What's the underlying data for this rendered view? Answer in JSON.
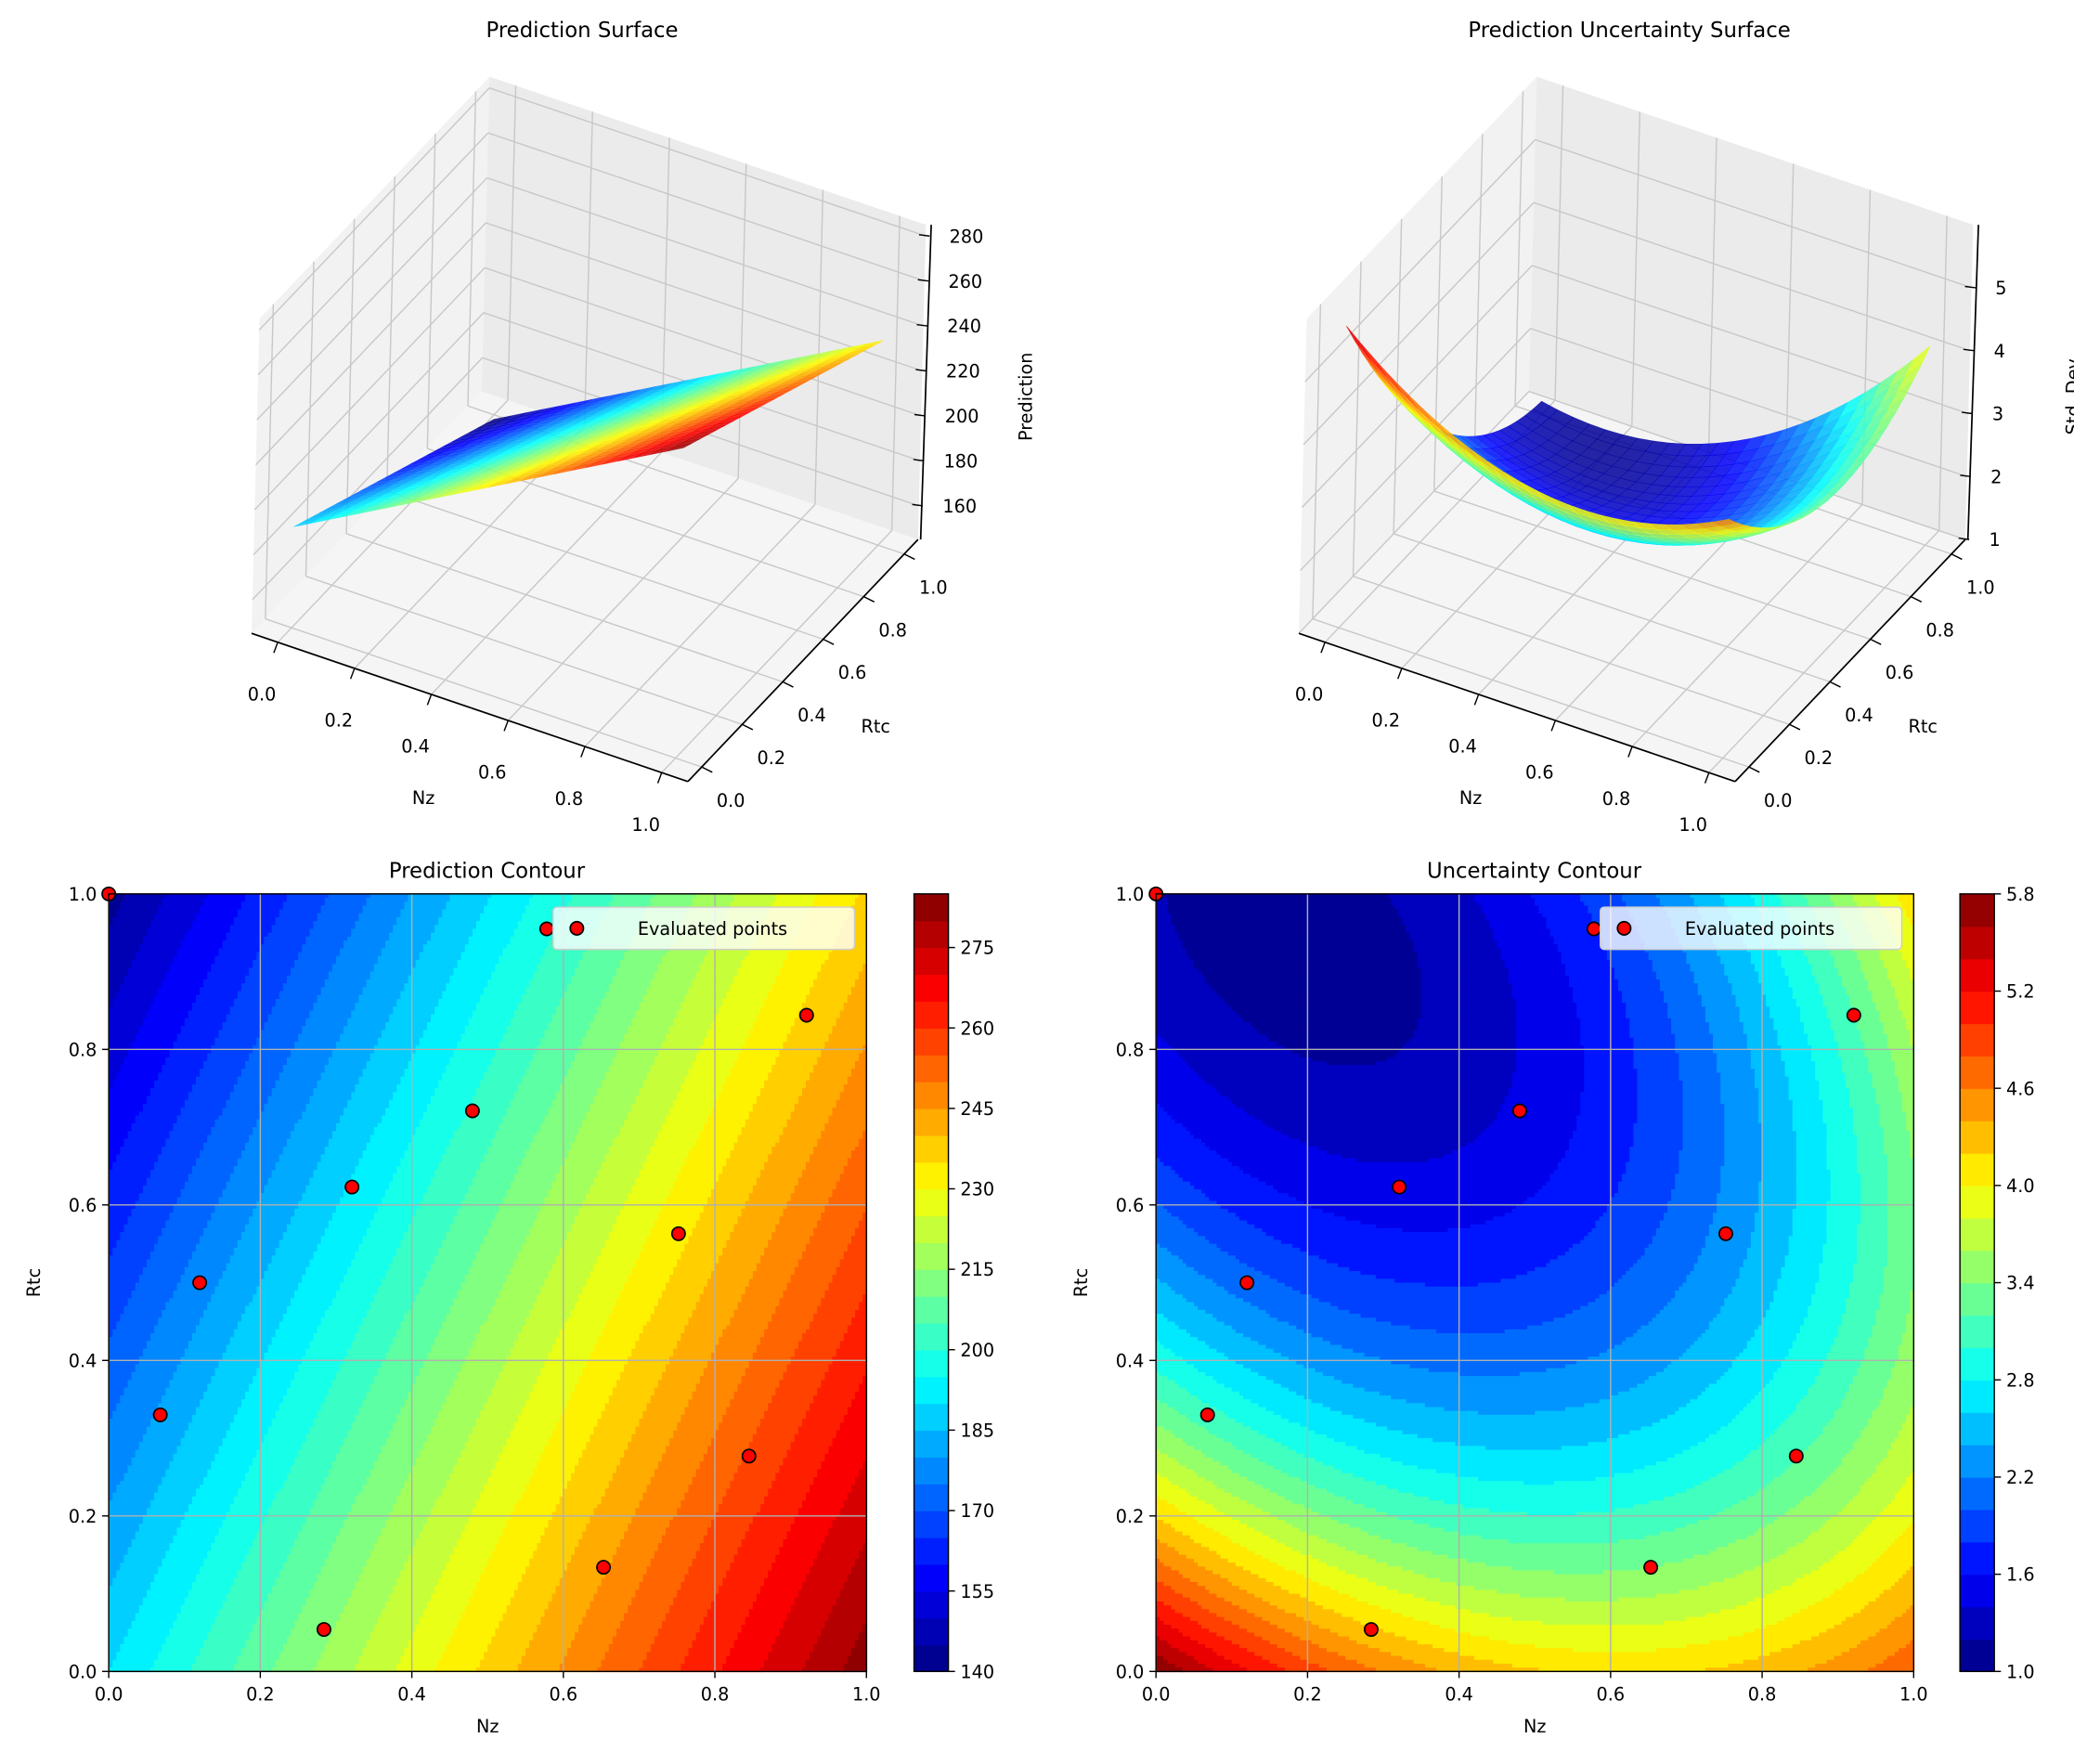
{
  "chart_data": [
    {
      "type": "surface3d",
      "title": "Prediction Surface",
      "xlabel": "Nz",
      "ylabel": "Rtc",
      "zlabel": "Prediction",
      "xlim": [
        0,
        1
      ],
      "ylim": [
        0,
        1
      ],
      "zlim": [
        145,
        285
      ],
      "xticks": [
        "0.0",
        "0.2",
        "0.4",
        "0.6",
        "0.8",
        "1.0"
      ],
      "yticks": [
        "0.0",
        "0.2",
        "0.4",
        "0.6",
        "0.8",
        "1.0"
      ],
      "zticks": [
        "160",
        "180",
        "200",
        "220",
        "240",
        "260",
        "280"
      ],
      "colormap": "jet",
      "grid": true
    },
    {
      "type": "surface3d",
      "title": "Prediction Uncertainty Surface",
      "xlabel": "Nz",
      "ylabel": "Rtc",
      "zlabel": "Std. Dev",
      "xlim": [
        0,
        1
      ],
      "ylim": [
        0,
        1
      ],
      "zlim": [
        1,
        6
      ],
      "xticks": [
        "0.0",
        "0.2",
        "0.4",
        "0.6",
        "0.8",
        "1.0"
      ],
      "yticks": [
        "0.0",
        "0.2",
        "0.4",
        "0.6",
        "0.8",
        "1.0"
      ],
      "zticks": [
        "1",
        "2",
        "3",
        "4",
        "5"
      ],
      "colormap": "jet",
      "grid": true
    },
    {
      "type": "contour",
      "title": "Prediction Contour",
      "xlabel": "Nz",
      "ylabel": "Rtc",
      "xlim": [
        0,
        1
      ],
      "ylim": [
        0,
        1
      ],
      "xticks": [
        "0.0",
        "0.2",
        "0.4",
        "0.6",
        "0.8",
        "1.0"
      ],
      "yticks": [
        "0.0",
        "0.2",
        "0.4",
        "0.6",
        "0.8",
        "1.0"
      ],
      "colorbar": {
        "min": 140,
        "max": 285,
        "step": 5,
        "ticks": [
          "140",
          "155",
          "170",
          "185",
          "200",
          "215",
          "230",
          "245",
          "260",
          "275"
        ]
      },
      "colormap": "jet",
      "grid": true,
      "legend": {
        "label": "Evaluated points",
        "position": "upper right"
      },
      "points": [
        [
          0.0,
          1.0
        ],
        [
          0.578,
          0.955
        ],
        [
          0.921,
          0.844
        ],
        [
          0.48,
          0.721
        ],
        [
          0.321,
          0.623
        ],
        [
          0.752,
          0.563
        ],
        [
          0.12,
          0.5
        ],
        [
          0.068,
          0.33
        ],
        [
          0.845,
          0.277
        ],
        [
          0.653,
          0.134
        ],
        [
          0.284,
          0.054
        ]
      ]
    },
    {
      "type": "contour",
      "title": "Uncertainty Contour",
      "xlabel": "Nz",
      "ylabel": "Rtc",
      "xlim": [
        0,
        1
      ],
      "ylim": [
        0,
        1
      ],
      "xticks": [
        "0.0",
        "0.2",
        "0.4",
        "0.6",
        "0.8",
        "1.0"
      ],
      "yticks": [
        "0.0",
        "0.2",
        "0.4",
        "0.6",
        "0.8",
        "1.0"
      ],
      "colorbar": {
        "min": 1.0,
        "max": 5.8,
        "step": 0.2,
        "ticks": [
          "1.0",
          "1.6",
          "2.2",
          "2.8",
          "3.4",
          "4.0",
          "4.6",
          "5.2",
          "5.8"
        ]
      },
      "colormap": "jet",
      "grid": true,
      "legend": {
        "label": "Evaluated points",
        "position": "upper right"
      },
      "points": [
        [
          0.0,
          1.0
        ],
        [
          0.578,
          0.955
        ],
        [
          0.921,
          0.844
        ],
        [
          0.48,
          0.721
        ],
        [
          0.321,
          0.623
        ],
        [
          0.752,
          0.563
        ],
        [
          0.12,
          0.5
        ],
        [
          0.068,
          0.33
        ],
        [
          0.845,
          0.277
        ],
        [
          0.653,
          0.134
        ],
        [
          0.284,
          0.054
        ]
      ]
    }
  ],
  "colors": {
    "point_fill": "#ff0000",
    "point_edge": "#000000",
    "grid": "#b0b0b0"
  }
}
